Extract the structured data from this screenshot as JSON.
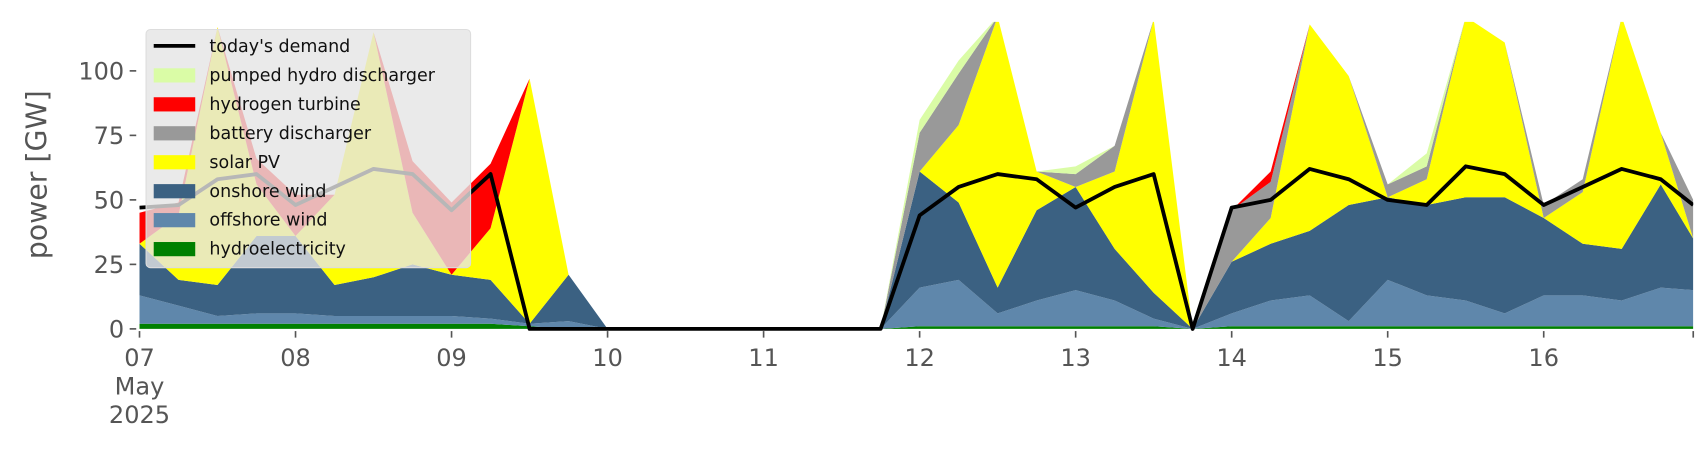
{
  "chart_data": {
    "type": "stacked_area",
    "ylabel": "power [GW]",
    "x": [
      "2025-05-07T00:00",
      "2025-05-07T06:00",
      "2025-05-07T12:00",
      "2025-05-07T18:00",
      "2025-05-08T00:00",
      "2025-05-08T06:00",
      "2025-05-08T12:00",
      "2025-05-08T18:00",
      "2025-05-09T00:00",
      "2025-05-09T06:00",
      "2025-05-09T12:00",
      "2025-05-09T18:00",
      "2025-05-10T00:00",
      "2025-05-10T06:00",
      "2025-05-10T12:00",
      "2025-05-10T18:00",
      "2025-05-11T00:00",
      "2025-05-11T06:00",
      "2025-05-11T12:00",
      "2025-05-11T18:00",
      "2025-05-12T00:00",
      "2025-05-12T06:00",
      "2025-05-12T12:00",
      "2025-05-12T18:00",
      "2025-05-13T00:00",
      "2025-05-13T06:00",
      "2025-05-13T12:00",
      "2025-05-13T18:00",
      "2025-05-14T00:00",
      "2025-05-14T06:00",
      "2025-05-14T12:00",
      "2025-05-14T18:00",
      "2025-05-15T00:00",
      "2025-05-15T06:00",
      "2025-05-15T12:00",
      "2025-05-15T18:00",
      "2025-05-16T00:00",
      "2025-05-16T06:00",
      "2025-05-16T12:00",
      "2025-05-16T18:00",
      "2025-05-16T23:00"
    ],
    "series": [
      {
        "name": "hydroelectricity",
        "color": "#008000",
        "values": [
          2,
          2,
          2,
          2,
          2,
          2,
          2,
          2,
          2,
          2,
          1,
          0,
          0,
          0,
          0,
          0,
          0,
          0,
          0,
          0,
          1,
          1,
          1,
          1,
          1,
          1,
          1,
          0,
          1,
          1,
          1,
          1,
          1,
          1,
          1,
          1,
          1,
          1,
          1,
          1,
          1
        ]
      },
      {
        "name": "offshore wind",
        "color": "#5f87ab",
        "values": [
          11,
          7,
          3,
          4,
          4,
          3,
          3,
          3,
          3,
          2,
          1,
          3,
          0,
          0,
          0,
          0,
          0,
          0,
          0,
          0,
          15,
          18,
          5,
          10,
          14,
          10,
          3,
          0,
          5,
          10,
          12,
          2,
          18,
          12,
          10,
          5,
          12,
          12,
          10,
          15,
          14
        ]
      },
      {
        "name": "onshore wind",
        "color": "#3b6182",
        "values": [
          20,
          10,
          12,
          30,
          30,
          12,
          15,
          20,
          16,
          15,
          0,
          18,
          0,
          0,
          0,
          0,
          0,
          0,
          0,
          0,
          45,
          30,
          10,
          35,
          40,
          20,
          10,
          0,
          20,
          22,
          25,
          45,
          32,
          35,
          40,
          45,
          30,
          20,
          20,
          40,
          20
        ]
      },
      {
        "name": "solar PV",
        "color": "#ffff00",
        "values": [
          0,
          25,
          100,
          20,
          0,
          35,
          95,
          20,
          0,
          20,
          95,
          0,
          0,
          0,
          0,
          0,
          0,
          0,
          0,
          0,
          0,
          30,
          105,
          15,
          0,
          30,
          106,
          0,
          0,
          10,
          80,
          50,
          0,
          10,
          70,
          60,
          0,
          20,
          90,
          20,
          0
        ]
      },
      {
        "name": "battery discharger",
        "color": "#999999",
        "values": [
          0,
          0,
          0,
          0,
          0,
          0,
          0,
          0,
          0,
          0,
          0,
          0,
          0,
          0,
          0,
          0,
          0,
          0,
          0,
          0,
          15,
          20,
          0,
          0,
          5,
          10,
          0,
          0,
          20,
          14,
          0,
          0,
          5,
          5,
          0,
          0,
          5,
          5,
          0,
          0,
          15
        ]
      },
      {
        "name": "hydrogen turbine",
        "color": "#ff0000",
        "values": [
          12,
          5,
          0,
          10,
          16,
          0,
          0,
          20,
          28,
          25,
          0,
          0,
          0,
          0,
          0,
          0,
          0,
          0,
          0,
          0,
          0,
          0,
          0,
          0,
          0,
          0,
          0,
          0,
          0,
          4,
          0,
          0,
          0,
          0,
          0,
          0,
          0,
          0,
          0,
          0,
          0
        ]
      },
      {
        "name": "pumped hydro discharger",
        "color": "#dafca6",
        "values": [
          0,
          0,
          0,
          0,
          0,
          0,
          0,
          0,
          0,
          0,
          0,
          0,
          0,
          0,
          0,
          0,
          0,
          0,
          0,
          0,
          5,
          5,
          0,
          0,
          3,
          0,
          0,
          0,
          0,
          0,
          0,
          0,
          0,
          5,
          0,
          0,
          0,
          0,
          0,
          0,
          0
        ]
      }
    ],
    "line": {
      "name": "today's demand",
      "color": "#000000",
      "values": [
        47,
        48,
        58,
        60,
        48,
        55,
        62,
        60,
        46,
        60,
        0,
        0,
        0,
        0,
        0,
        0,
        0,
        0,
        0,
        0,
        44,
        55,
        60,
        58,
        47,
        55,
        60,
        0,
        47,
        50,
        62,
        58,
        50,
        48,
        63,
        60,
        48,
        55,
        62,
        58,
        48
      ]
    },
    "xlim": [
      "2025-05-07T00:00",
      "2025-05-16T23:00"
    ],
    "xticks": [
      {
        "value": "2025-05-07T00:00",
        "label": "07\nMay\n2025"
      },
      {
        "value": "2025-05-08T00:00",
        "label": "08"
      },
      {
        "value": "2025-05-09T00:00",
        "label": "09"
      },
      {
        "value": "2025-05-10T00:00",
        "label": "10"
      },
      {
        "value": "2025-05-11T00:00",
        "label": "11"
      },
      {
        "value": "2025-05-12T00:00",
        "label": "12"
      },
      {
        "value": "2025-05-13T00:00",
        "label": "13"
      },
      {
        "value": "2025-05-14T00:00",
        "label": "14"
      },
      {
        "value": "2025-05-15T00:00",
        "label": "15"
      },
      {
        "value": "2025-05-16T00:00",
        "label": "16"
      }
    ],
    "ylim": [
      0,
      119
    ],
    "yticks": [
      0,
      25,
      50,
      75,
      100
    ],
    "legend": "upper left"
  }
}
